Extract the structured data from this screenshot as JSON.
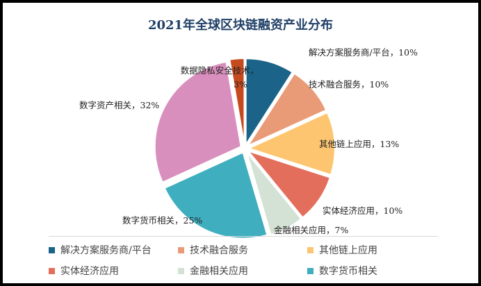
{
  "chart_data": {
    "type": "pie",
    "title": "2021年全球区块链融资产业分布",
    "slices": [
      {
        "name": "解决方案服务商/平台",
        "value": 10,
        "label": "解决方案服务商/平台，10%",
        "color": "#1b6388"
      },
      {
        "name": "技术融合服务",
        "value": 10,
        "label": "技术融合服务，10%",
        "color": "#e99b78"
      },
      {
        "name": "其他链上应用",
        "value": 13,
        "label": "其他链上应用，13%",
        "color": "#fdc56f"
      },
      {
        "name": "实体经济应用",
        "value": 10,
        "label": "实体经济应用，10%",
        "color": "#e36e5c"
      },
      {
        "name": "金融相关应用",
        "value": 7,
        "label": "金融相关应用，7%",
        "color": "#d3e2d4"
      },
      {
        "name": "数字货币相关",
        "value": 25,
        "label": "数字货币相关，25%",
        "color": "#3faebf"
      },
      {
        "name": "数字资产相关",
        "value": 32,
        "label": "数字资产相关，32%",
        "color": "#d98fbd"
      },
      {
        "name": "数据隐私安全技术",
        "value": 3,
        "label_line1": "数据隐私安全技术，",
        "label_line2": "3%",
        "color": "#c54a1e"
      }
    ],
    "legend": {
      "placement": "bottom",
      "items": [
        "解决方案服务商/平台",
        "技术融合服务",
        "其他链上应用",
        "实体经济应用",
        "金融相关应用",
        "数字货币相关"
      ]
    }
  }
}
